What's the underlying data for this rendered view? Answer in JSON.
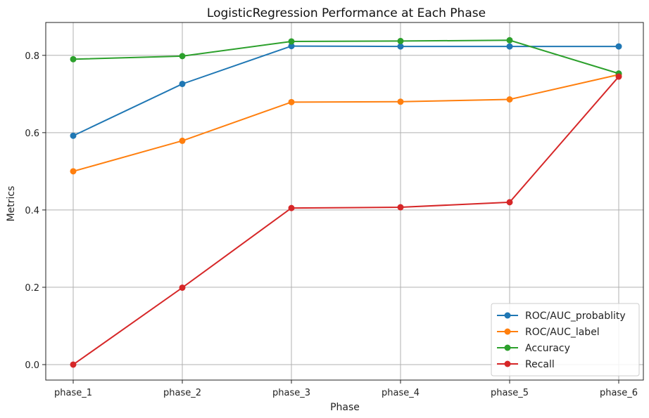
{
  "chart_data": {
    "type": "line",
    "title": "LogisticRegression Performance at Each Phase",
    "xlabel": "Phase",
    "ylabel": "Metrics",
    "categories": [
      "phase_1",
      "phase_2",
      "phase_3",
      "phase_4",
      "phase_5",
      "phase_6"
    ],
    "ylim": [
      -0.04,
      0.885
    ],
    "yticks": [
      "0.0",
      "0.2",
      "0.4",
      "0.6",
      "0.8"
    ],
    "grid": true,
    "legend_position": "lower-right",
    "series": [
      {
        "name": "ROC/AUC_probablity",
        "color": "#1f77b4",
        "values": [
          0.592,
          0.726,
          0.824,
          0.823,
          0.823,
          0.823
        ]
      },
      {
        "name": "ROC/AUC_label",
        "color": "#ff7f0e",
        "values": [
          0.5,
          0.579,
          0.679,
          0.68,
          0.686,
          0.75
        ]
      },
      {
        "name": "Accuracy",
        "color": "#2ca02c",
        "values": [
          0.79,
          0.798,
          0.836,
          0.837,
          0.839,
          0.753
        ]
      },
      {
        "name": "Recall",
        "color": "#d62728",
        "values": [
          0.0,
          0.199,
          0.405,
          0.407,
          0.42,
          0.745
        ]
      }
    ]
  }
}
